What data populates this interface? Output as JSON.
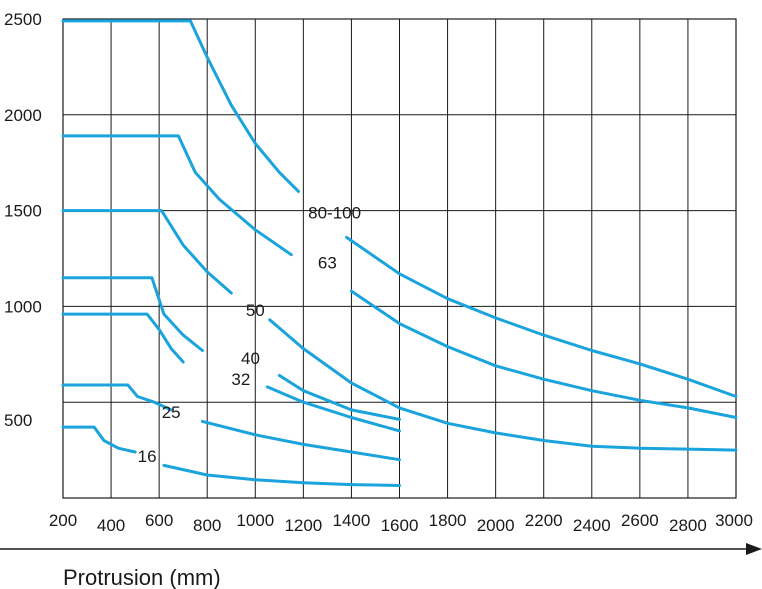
{
  "chart_data": {
    "type": "line",
    "title": "",
    "xlabel": "Protrusion (mm)",
    "ylabel": "",
    "xlim": [
      200,
      3000
    ],
    "ylim": [
      0,
      2500
    ],
    "x_ticks": [
      "200",
      "400",
      "600",
      "800",
      "1000",
      "1200",
      "1400",
      "1600",
      "1800",
      "2000",
      "2200",
      "2400",
      "2600",
      "2800",
      "3000"
    ],
    "y_ticks": [
      "500",
      "1000",
      "1500",
      "2000",
      "2500"
    ],
    "grid": true,
    "legend": "none",
    "line_color": "#1aa3dc",
    "series": [
      {
        "name": "80-100",
        "label_at": [
          1330,
          1490
        ],
        "segments": [
          [
            [
              200,
              2490
            ],
            [
              730,
              2490
            ],
            [
              800,
              2300
            ],
            [
              900,
              2050
            ],
            [
              1000,
              1850
            ],
            [
              1100,
              1700
            ],
            [
              1180,
              1600
            ]
          ],
          [
            [
              1380,
              1360
            ],
            [
              1600,
              1170
            ],
            [
              1800,
              1040
            ],
            [
              2000,
              940
            ],
            [
              2200,
              850
            ],
            [
              2400,
              770
            ],
            [
              2600,
              700
            ],
            [
              2800,
              620
            ],
            [
              3000,
              530
            ]
          ]
        ]
      },
      {
        "name": "63",
        "label_at": [
          1300,
          1230
        ],
        "segments": [
          [
            [
              200,
              1890
            ],
            [
              680,
              1890
            ],
            [
              750,
              1700
            ],
            [
              850,
              1560
            ],
            [
              1000,
              1400
            ],
            [
              1150,
              1270
            ]
          ],
          [
            [
              1400,
              1080
            ],
            [
              1600,
              910
            ],
            [
              1800,
              790
            ],
            [
              2000,
              690
            ],
            [
              2200,
              620
            ],
            [
              2400,
              560
            ],
            [
              2600,
              510
            ],
            [
              2800,
              470
            ],
            [
              3000,
              420
            ]
          ]
        ]
      },
      {
        "name": "50",
        "label_at": [
          1000,
          980
        ],
        "segments": [
          [
            [
              200,
              1500
            ],
            [
              610,
              1500
            ],
            [
              700,
              1320
            ],
            [
              800,
              1180
            ],
            [
              900,
              1070
            ]
          ],
          [
            [
              1060,
              930
            ],
            [
              1200,
              780
            ],
            [
              1400,
              600
            ],
            [
              1600,
              470
            ],
            [
              1800,
              390
            ],
            [
              2000,
              340
            ],
            [
              2200,
              300
            ],
            [
              2400,
              270
            ],
            [
              2600,
              260
            ],
            [
              2800,
              255
            ],
            [
              3000,
              250
            ]
          ]
        ]
      },
      {
        "name": "40",
        "label_at": [
          980,
          730
        ],
        "segments": [
          [
            [
              200,
              1150
            ],
            [
              570,
              1150
            ],
            [
              620,
              960
            ],
            [
              700,
              850
            ],
            [
              780,
              770
            ]
          ],
          [
            [
              1100,
              640
            ],
            [
              1200,
              560
            ],
            [
              1400,
              460
            ],
            [
              1600,
              410
            ]
          ]
        ]
      },
      {
        "name": "32",
        "label_at": [
          940,
          620
        ],
        "segments": [
          [
            [
              200,
              960
            ],
            [
              550,
              960
            ],
            [
              600,
              880
            ],
            [
              650,
              780
            ],
            [
              700,
              710
            ]
          ],
          [
            [
              1050,
              580
            ],
            [
              1200,
              500
            ],
            [
              1400,
              420
            ],
            [
              1600,
              350
            ]
          ]
        ]
      },
      {
        "name": "25",
        "label_at": [
          650,
          450
        ],
        "segments": [
          [
            [
              200,
              590
            ],
            [
              470,
              590
            ],
            [
              510,
              530
            ],
            [
              580,
              500
            ],
            [
              650,
              460
            ]
          ],
          [
            [
              780,
              400
            ],
            [
              1000,
              330
            ],
            [
              1200,
              280
            ],
            [
              1400,
              240
            ],
            [
              1600,
              200
            ]
          ]
        ]
      },
      {
        "name": "16",
        "label_at": [
          550,
          220
        ],
        "segments": [
          [
            [
              200,
              370
            ],
            [
              330,
              370
            ],
            [
              370,
              300
            ],
            [
              430,
              260
            ],
            [
              500,
              240
            ]
          ],
          [
            [
              620,
              170
            ],
            [
              800,
              120
            ],
            [
              1000,
              95
            ],
            [
              1200,
              80
            ],
            [
              1400,
              70
            ],
            [
              1600,
              65
            ]
          ]
        ]
      }
    ]
  }
}
